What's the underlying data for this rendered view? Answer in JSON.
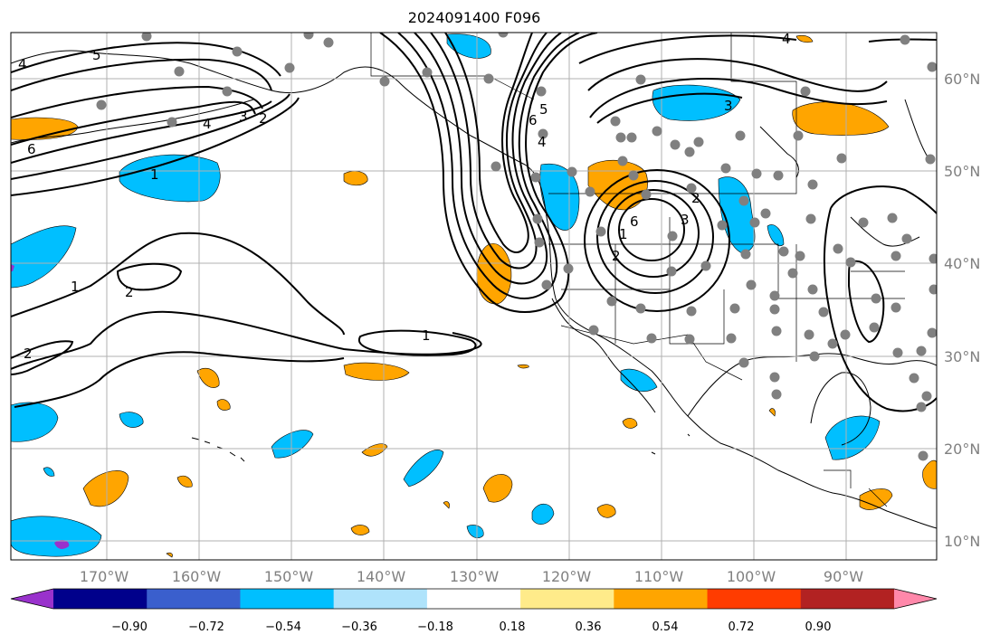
{
  "title": "2024091400 F096",
  "lon_labels": [
    "170°W",
    "160°W",
    "150°W",
    "140°W",
    "130°W",
    "120°W",
    "110°W",
    "100°W",
    "90°W"
  ],
  "lat_labels": [
    "60°N",
    "50°N",
    "40°N",
    "30°N",
    "20°N",
    "10°N"
  ],
  "colorbar": {
    "ticks": [
      "−0.90",
      "−0.72",
      "−0.54",
      "−0.36",
      "−0.18",
      "0.18",
      "0.36",
      "0.54",
      "0.72",
      "0.90"
    ],
    "colors": [
      "#9932cc",
      "#00008b",
      "#3a5fcd",
      "#00bfff",
      "#afe3fb",
      "#ffffff",
      "#ffeb8a",
      "#ffa500",
      "#ff3c00",
      "#b22222",
      "#ff88aa"
    ]
  },
  "contour_labels": [
    "4",
    "5",
    "6",
    "4",
    "3",
    "2",
    "1",
    "1",
    "2",
    "2",
    "1",
    "6",
    "5",
    "4",
    "3",
    "2",
    "1",
    "2",
    "3",
    "6",
    "4"
  ],
  "colors": {
    "positive": "#ffa500",
    "negative": "#00bfff",
    "station": "#808080"
  }
}
